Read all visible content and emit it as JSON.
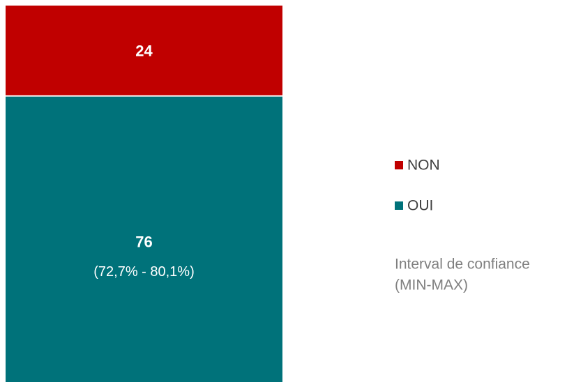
{
  "chart_data": {
    "type": "bar",
    "stacked": true,
    "categories": [
      null
    ],
    "series": [
      {
        "name": "OUI",
        "color": "#00727a",
        "values": [
          76
        ]
      },
      {
        "name": "NON",
        "color": "#c00000",
        "values": [
          24
        ]
      }
    ],
    "ylim": [
      0,
      100
    ],
    "annotations": [
      "(72,7% - 80,1%)"
    ],
    "legend_note": [
      "Interval de confiance",
      "(MIN-MAX)"
    ],
    "legend": "right"
  }
}
